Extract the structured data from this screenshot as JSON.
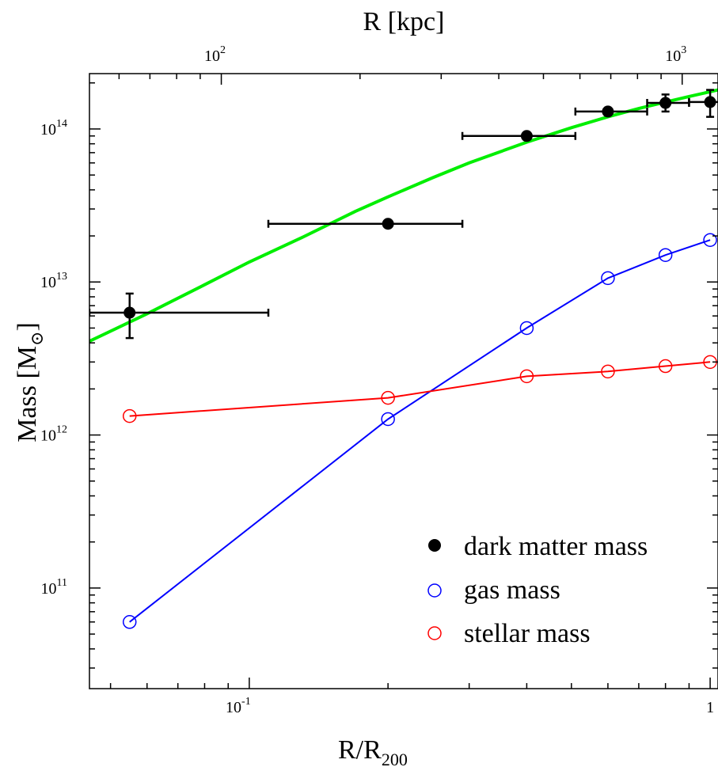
{
  "chart_data": {
    "type": "scatter",
    "x_scale": "log",
    "y_scale": "log",
    "xlim": [
      0.045,
      1.04
    ],
    "ylim": [
      22000000000.0,
      230000000000000.0
    ],
    "xlabel": {
      "main": "R/R",
      "sub": "200"
    },
    "ylabel": {
      "main": "Mass [M",
      "sub": "⊙",
      "close": "]"
    },
    "x2label": "R [kpc]",
    "x2_ticks": [
      {
        "value": 100,
        "base": "10",
        "exp": "2"
      },
      {
        "value": 1000,
        "base": "10",
        "exp": "3"
      }
    ],
    "x2_per_r200": 1150,
    "x_ticks": [
      {
        "value": 0.1,
        "base": "10",
        "exp": "-1"
      },
      {
        "value": 1,
        "base": "1",
        "exp": ""
      }
    ],
    "y_ticks": [
      {
        "value": 100000000000.0,
        "base": "10",
        "exp": "11"
      },
      {
        "value": 1000000000000.0,
        "base": "10",
        "exp": "12"
      },
      {
        "value": 10000000000000.0,
        "base": "10",
        "exp": "13"
      },
      {
        "value": 100000000000000.0,
        "base": "10",
        "exp": "14"
      }
    ],
    "grid": false,
    "legend_position": "bottom-right",
    "series": [
      {
        "name": "dark matter mass",
        "marker": "filled-circle",
        "color": "#000000",
        "points": [
          {
            "x": 0.055,
            "y": 6300000000000.0,
            "xerr": [
              0.045,
              0.11
            ],
            "yerr": [
              4300000000000.0,
              8400000000000.0
            ]
          },
          {
            "x": 0.2,
            "y": 24000000000000.0,
            "xerr": [
              0.11,
              0.29
            ]
          },
          {
            "x": 0.4,
            "y": 90000000000000.0,
            "xerr": [
              0.29,
              0.51
            ]
          },
          {
            "x": 0.6,
            "y": 130000000000000.0,
            "xerr": [
              0.51,
              0.73
            ]
          },
          {
            "x": 0.8,
            "y": 148000000000000.0,
            "xerr": [
              0.73,
              0.9
            ],
            "yerr": [
              130000000000000.0,
              168000000000000.0
            ]
          },
          {
            "x": 1.0,
            "y": 150000000000000.0,
            "xerr": [
              0.9,
              1.12
            ],
            "yerr": [
              120000000000000.0,
              180000000000000.0
            ]
          }
        ]
      },
      {
        "name": "gas mass",
        "marker": "open-circle",
        "color": "#0000ff",
        "points": [
          {
            "x": 0.055,
            "y": 60000000000.0
          },
          {
            "x": 0.2,
            "y": 1270000000000.0
          },
          {
            "x": 0.4,
            "y": 5000000000000.0
          },
          {
            "x": 0.6,
            "y": 10600000000000.0
          },
          {
            "x": 0.8,
            "y": 15000000000000.0
          },
          {
            "x": 1.0,
            "y": 18800000000000.0
          }
        ]
      },
      {
        "name": "stellar mass",
        "marker": "open-circle",
        "color": "#ff0000",
        "points": [
          {
            "x": 0.055,
            "y": 1330000000000.0
          },
          {
            "x": 0.2,
            "y": 1750000000000.0
          },
          {
            "x": 0.4,
            "y": 2420000000000.0
          },
          {
            "x": 0.6,
            "y": 2600000000000.0
          },
          {
            "x": 0.8,
            "y": 2820000000000.0
          },
          {
            "x": 1.0,
            "y": 3000000000000.0
          }
        ]
      }
    ],
    "fit_curve": {
      "color": "#00ee00",
      "points": [
        {
          "x": 0.045,
          "y": 4100000000000.0
        },
        {
          "x": 0.06,
          "y": 6200000000000.0
        },
        {
          "x": 0.08,
          "y": 9600000000000.0
        },
        {
          "x": 0.1,
          "y": 13500000000000.0
        },
        {
          "x": 0.13,
          "y": 19500000000000.0
        },
        {
          "x": 0.17,
          "y": 29000000000000.0
        },
        {
          "x": 0.2,
          "y": 36000000000000.0
        },
        {
          "x": 0.25,
          "y": 48000000000000.0
        },
        {
          "x": 0.3,
          "y": 60000000000000.0
        },
        {
          "x": 0.4,
          "y": 82000000000000.0
        },
        {
          "x": 0.5,
          "y": 102000000000000.0
        },
        {
          "x": 0.6,
          "y": 120000000000000.0
        },
        {
          "x": 0.7,
          "y": 136000000000000.0
        },
        {
          "x": 0.8,
          "y": 150000000000000.0
        },
        {
          "x": 0.9,
          "y": 163000000000000.0
        },
        {
          "x": 1.0,
          "y": 175000000000000.0
        },
        {
          "x": 1.04,
          "y": 180000000000000.0
        }
      ]
    }
  }
}
